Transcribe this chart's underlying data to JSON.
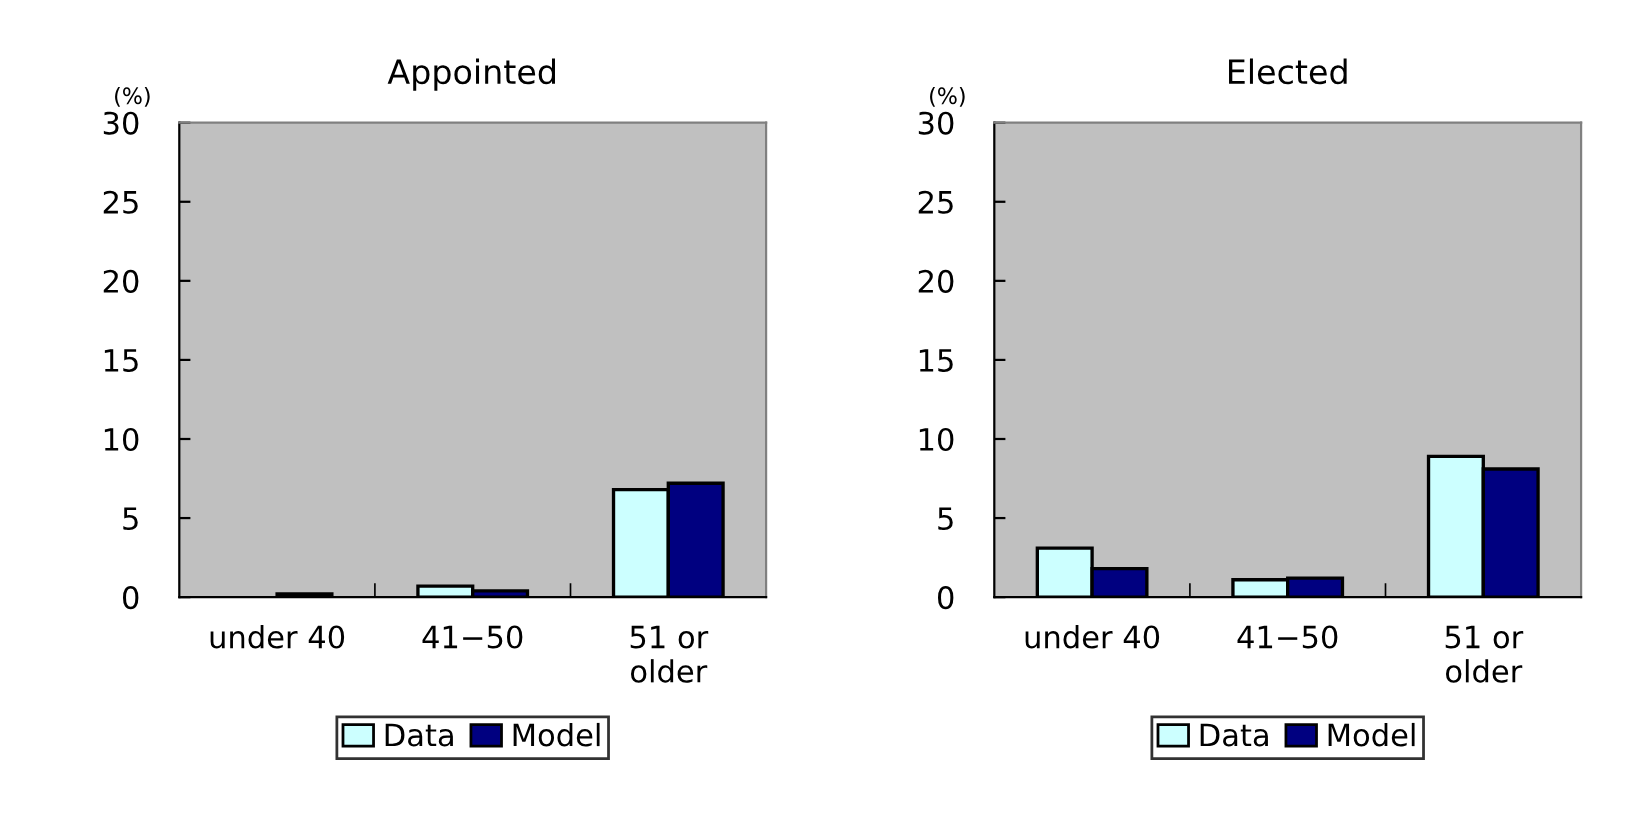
{
  "chart_data": [
    {
      "type": "bar",
      "title": "Appointed",
      "ylabel": "(%)",
      "categories": [
        "under 40",
        "41−50",
        "51 or\nolder"
      ],
      "ylim": [
        0,
        30
      ],
      "yticks": [
        0,
        5,
        10,
        15,
        20,
        25,
        30
      ],
      "grid": false,
      "legend": "bottom",
      "series": [
        {
          "name": "Data",
          "color": "#ccffff",
          "values": [
            null,
            0.7,
            6.8
          ]
        },
        {
          "name": "Model",
          "color": "#000080",
          "values": [
            0.2,
            0.4,
            7.2
          ]
        }
      ]
    },
    {
      "type": "bar",
      "title": "Elected",
      "ylabel": "(%)",
      "categories": [
        "under 40",
        "41−50",
        "51 or\nolder"
      ],
      "ylim": [
        0,
        30
      ],
      "yticks": [
        0,
        5,
        10,
        15,
        20,
        25,
        30
      ],
      "grid": false,
      "legend": "bottom",
      "series": [
        {
          "name": "Data",
          "color": "#ccffff",
          "values": [
            3.1,
            1.1,
            8.9
          ]
        },
        {
          "name": "Model",
          "color": "#000080",
          "values": [
            1.8,
            1.2,
            8.1
          ]
        }
      ]
    }
  ]
}
